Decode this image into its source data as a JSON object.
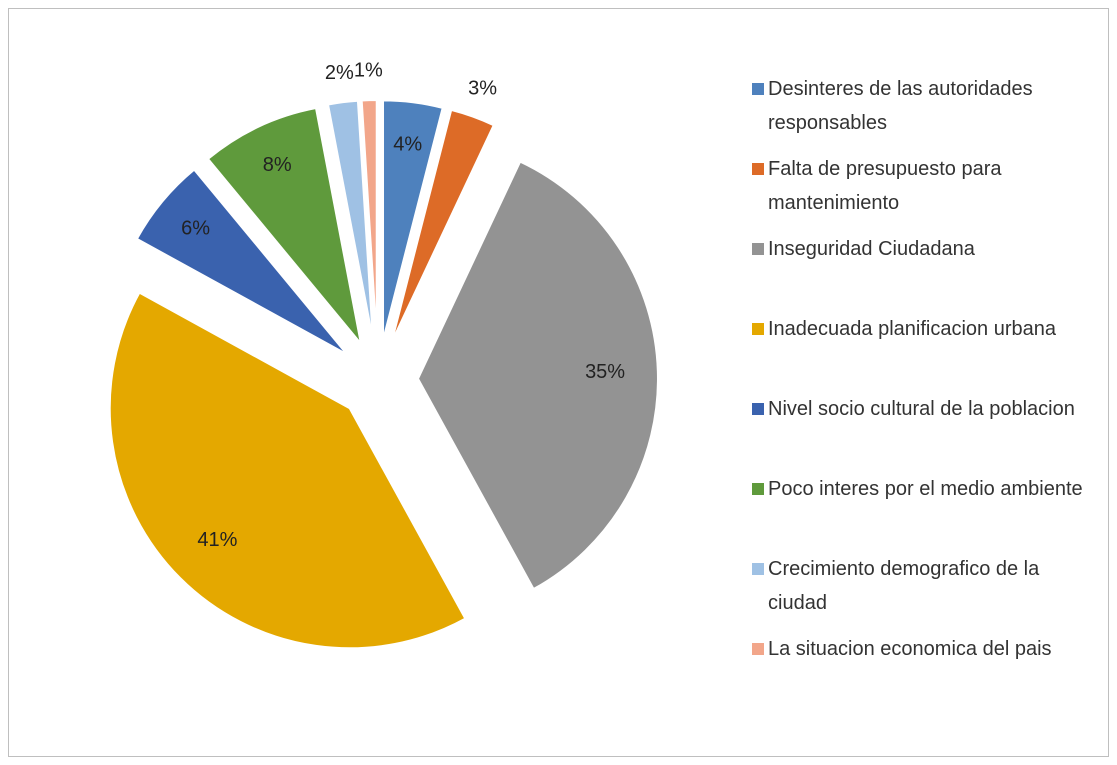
{
  "chart_data": {
    "type": "pie",
    "categories": [
      "Desinteres de las autoridades responsables",
      "Falta de presupuesto para mantenimiento",
      "Inseguridad Ciudadana",
      "Inadecuada planificacion urbana",
      "Nivel socio cultural de la poblacion",
      "Poco interes por el medio ambiente",
      "Crecimiento demografico de la ciudad",
      "La situacion economica del pais"
    ],
    "values": [
      4,
      3,
      35,
      41,
      6,
      8,
      2,
      1
    ],
    "value_labels": [
      "4%",
      "3%",
      "35%",
      "41%",
      "6%",
      "8%",
      "2%",
      "1%"
    ],
    "colors": [
      "#4e81bd",
      "#dd6b27",
      "#939393",
      "#e4a800",
      "#3a62ae",
      "#5f9a3c",
      "#9fc1e4",
      "#f2a68a"
    ],
    "legend": "right"
  }
}
